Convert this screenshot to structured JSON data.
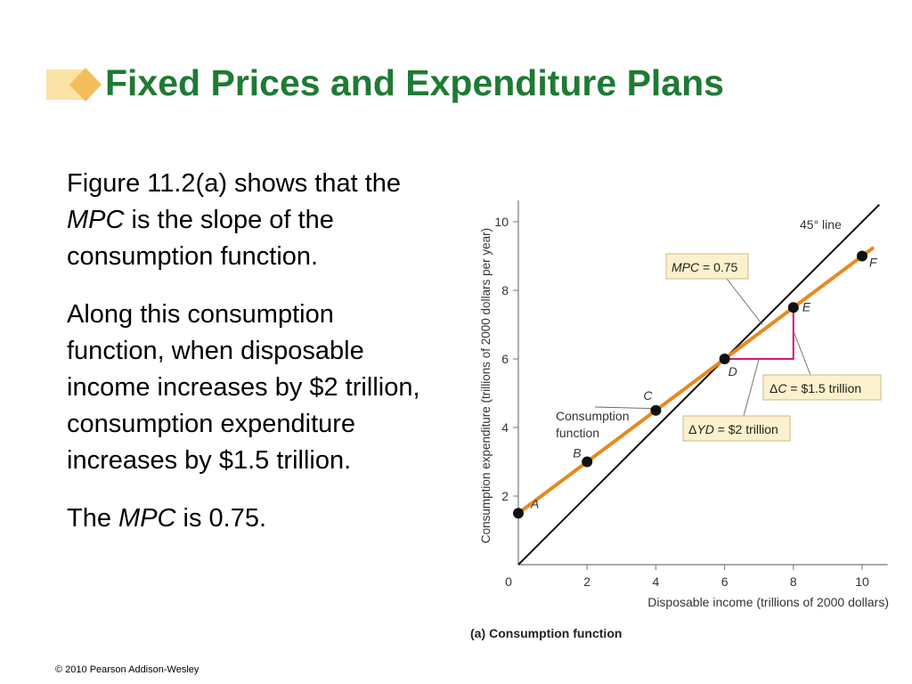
{
  "title": "Fixed Prices and Expenditure Plans",
  "body": {
    "p1_a": "Figure 11.2(a) shows that the ",
    "p1_mpc": "MPC",
    "p1_b": " is the slope of the consumption function.",
    "p2": "Along this consumption function, when disposable income increases by $2 trillion, consumption expenditure increases by $1.5 trillion.",
    "p3_a": "The ",
    "p3_mpc": "MPC",
    "p3_b": " is 0.75."
  },
  "copyright": "© 2010 Pearson Addison-Wesley",
  "colors": {
    "title": "#1e7a34",
    "consumption_line": "#e8891d",
    "delta": "#d4157a",
    "callout_bg": "#fbf1cc",
    "callout_border": "#c9b98a",
    "deco": "#f6c46b"
  },
  "chart_data": {
    "type": "line",
    "caption_prefix": "(a)",
    "caption_text": "Consumption function",
    "xlabel": "Disposable income (trillions of 2000 dollars)",
    "ylabel": "Consumption expenditure (trillions of 2000 dollars per year)",
    "xlim": [
      0,
      11
    ],
    "ylim": [
      0,
      11
    ],
    "xticks": [
      0,
      2,
      4,
      6,
      8,
      10
    ],
    "yticks": [
      2,
      4,
      6,
      8,
      10
    ],
    "grid": false,
    "series": [
      {
        "values": [
          [
            0,
            0
          ],
          [
            10.5,
            10.5
          ]
        ]
      },
      {
        "values": [
          [
            0,
            1.5
          ],
          [
            10.3,
            9.225
          ]
        ]
      }
    ],
    "points": [
      {
        "label": "A",
        "x": 0,
        "y": 1.5
      },
      {
        "label": "B",
        "x": 2,
        "y": 3
      },
      {
        "label": "C",
        "x": 4,
        "y": 4.5
      },
      {
        "label": "D",
        "x": 6,
        "y": 6
      },
      {
        "label": "E",
        "x": 8,
        "y": 7.5
      },
      {
        "label": "F",
        "x": 10,
        "y": 9
      }
    ],
    "annotations": {
      "line45": "45° line",
      "consumption_line_1": "Consumption",
      "consumption_line_2": "function",
      "mpc_prefix": "MPC",
      "mpc_value": " = 0.75",
      "delta_c_sym": "Δ",
      "delta_c_var": "C",
      "delta_c_value": " = $1.5 trillion",
      "delta_yd_sym": "Δ",
      "delta_yd_var": "YD",
      "delta_yd_value": " = $2 trillion"
    }
  }
}
